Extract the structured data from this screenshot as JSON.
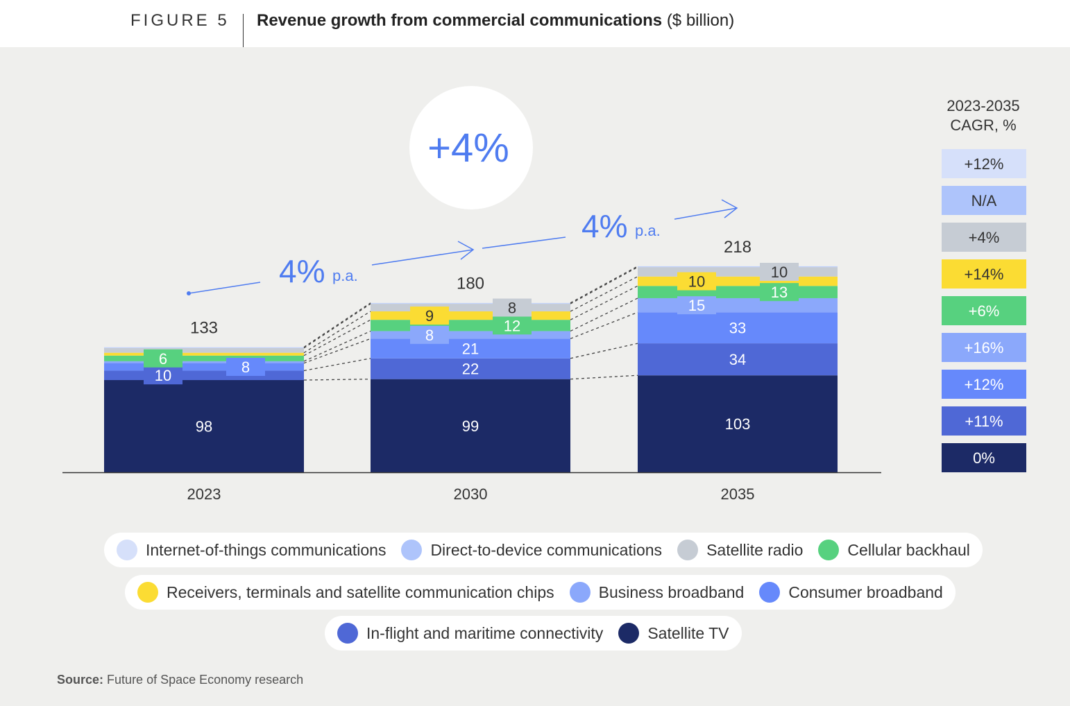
{
  "header": {
    "figure_label": "FIGURE 5",
    "title_bold": "Revenue growth from commercial communications",
    "title_unit": "($ billion)"
  },
  "chart_data": {
    "type": "bar",
    "stacked": true,
    "title": "Revenue growth from commercial communications ($ billion)",
    "categories": [
      "2023",
      "2030",
      "2035"
    ],
    "totals": [
      "133",
      "180",
      "218"
    ],
    "series": [
      {
        "name": "Satellite TV",
        "color": "#1c2a66",
        "values": [
          98,
          99,
          103
        ],
        "labels": [
          "98",
          "99",
          "103"
        ],
        "cagr": "0%"
      },
      {
        "name": "In-flight and maritime connectivity",
        "color": "#4f68d6",
        "values": [
          10,
          22,
          34
        ],
        "labels": [
          "10",
          "22",
          "34"
        ],
        "cagr": "+11%"
      },
      {
        "name": "Consumer broadband",
        "color": "#6689fb",
        "values": [
          8,
          21,
          33
        ],
        "labels": [
          "8",
          "21",
          "33"
        ],
        "cagr": "+12%"
      },
      {
        "name": "Business broadband",
        "color": "#8ba8fb",
        "values": [
          2,
          8,
          15
        ],
        "labels": [
          "",
          "8",
          "15"
        ],
        "cagr": "+16%"
      },
      {
        "name": "Cellular backhaul",
        "color": "#57d17f",
        "values": [
          6,
          12,
          13
        ],
        "labels": [
          "6",
          "12",
          "13"
        ],
        "cagr": "+6%"
      },
      {
        "name": "Receivers, terminals and satellite communication chips",
        "color": "#fbdc33",
        "values": [
          3,
          9,
          10
        ],
        "labels": [
          "",
          "9",
          "10"
        ],
        "cagr": "+14%"
      },
      {
        "name": "Satellite radio",
        "color": "#c6ccd4",
        "values": [
          5,
          8,
          10
        ],
        "labels": [
          "",
          "8",
          "10"
        ],
        "cagr": "+4%"
      },
      {
        "name": "Direct-to-device communications",
        "color": "#aec4fb",
        "values": [
          0.5,
          0.5,
          0.5
        ],
        "labels": [
          "",
          "",
          ""
        ],
        "cagr": "N/A"
      },
      {
        "name": "Internet-of-things communications",
        "color": "#d6e0fa",
        "values": [
          0.5,
          0.5,
          0.5
        ],
        "labels": [
          "",
          "",
          ""
        ],
        "cagr": "+12%"
      }
    ],
    "ylim": [
      0,
      240
    ],
    "overall_growth": "+4%",
    "annotations": [
      {
        "value": "4%",
        "suffix": "p.a."
      },
      {
        "value": "4%",
        "suffix": "p.a."
      }
    ],
    "cagr_header": [
      "2023-2035",
      "CAGR, %"
    ]
  },
  "source_label": "Source:",
  "source_text": "Future of Space Economy research"
}
